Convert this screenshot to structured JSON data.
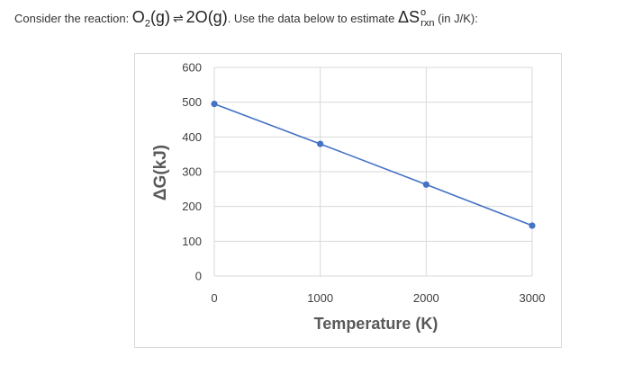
{
  "question": {
    "prefix": "Consider the reaction: ",
    "reactant_symbol": "O",
    "reactant_subscript": "2",
    "reactant_phase": "(g)",
    "arrow": "⇌",
    "product": "2O",
    "product_phase": "(g)",
    "middle": ". Use the data below to estimate ",
    "delta_s": "ΔS",
    "degree": "o",
    "rxn": "rxn",
    "suffix": " (in J/K):"
  },
  "colors": {
    "line": "#4472C4",
    "grid": "#d9d9d9",
    "frame": "#d9d9d9"
  },
  "chart_data": {
    "type": "scatter",
    "title": "",
    "xlabel": "Temperature (K)",
    "ylabel": "ΔG(kJ)",
    "xlim": [
      0,
      3000
    ],
    "ylim": [
      0,
      600
    ],
    "x_ticks": [
      "0",
      "1000",
      "2000",
      "3000"
    ],
    "y_ticks": [
      "0",
      "100",
      "200",
      "300",
      "400",
      "500",
      "600"
    ],
    "x_tick_values": [
      0,
      1000,
      2000,
      3000
    ],
    "y_tick_values": [
      0,
      100,
      200,
      300,
      400,
      500,
      600
    ],
    "grid": true,
    "series": [
      {
        "name": "ΔG",
        "x": [
          0,
          1000,
          2000,
          3000
        ],
        "y": [
          495,
          380,
          263,
          145
        ]
      }
    ]
  }
}
